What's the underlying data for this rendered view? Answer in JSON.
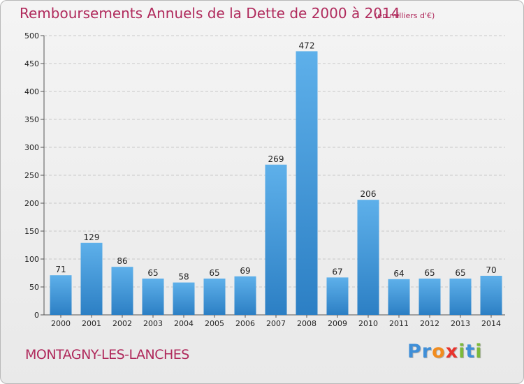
{
  "title": "Remboursements Annuels de la Dette de 2000 à 2014",
  "unit_note": "(en milliers d'€)",
  "commune": "MONTAGNY-LES-LANCHES",
  "logo": {
    "letters": [
      {
        "ch": "P",
        "color": "#3f8fd8"
      },
      {
        "ch": "r",
        "color": "#3f8fd8"
      },
      {
        "ch": "o",
        "color": "#f28c1e"
      },
      {
        "ch": "x",
        "color": "#e8342d"
      },
      {
        "ch": "i",
        "color": "#7cb93a"
      },
      {
        "ch": "t",
        "color": "#3f8fd8"
      },
      {
        "ch": "i",
        "color": "#7cb93a"
      }
    ]
  },
  "colors": {
    "bar_top": "#5eb0ea",
    "bar_bottom": "#2c7fc4",
    "grid": "#c8c8c8",
    "title": "#b02a5c"
  },
  "chart_data": {
    "type": "bar",
    "title": "Remboursements Annuels de la Dette de 2000 à 2014",
    "xlabel": "",
    "ylabel": "",
    "categories": [
      "2000",
      "2001",
      "2002",
      "2003",
      "2004",
      "2005",
      "2006",
      "2007",
      "2008",
      "2009",
      "2010",
      "2011",
      "2012",
      "2013",
      "2014"
    ],
    "values": [
      71,
      129,
      86,
      65,
      58,
      65,
      69,
      269,
      472,
      67,
      206,
      64,
      65,
      65,
      70
    ],
    "ylim": [
      0,
      500
    ],
    "yticks": [
      0,
      50,
      100,
      150,
      200,
      250,
      300,
      350,
      400,
      450,
      500
    ],
    "grid": true,
    "data_labels": true
  }
}
